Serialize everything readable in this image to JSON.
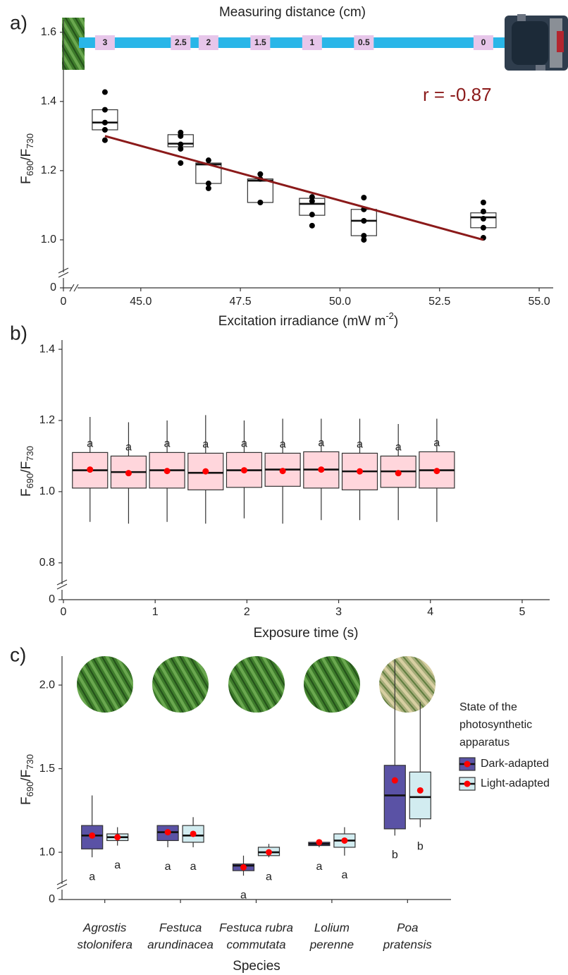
{
  "chart_data": [
    {
      "type": "box",
      "panel_label": "a)",
      "annotation_title": "Measuring distance (cm)",
      "distances": [
        3,
        2.5,
        2,
        1.5,
        1,
        0.5,
        0
      ],
      "annotation": "r = -0.87",
      "ylabel": [
        "F",
        "690",
        "/F",
        "730"
      ],
      "xlabel": [
        "Excitation irradiance (mW m",
        "-2",
        ")"
      ],
      "x": [
        44.1,
        46.0,
        46.7,
        48.0,
        49.3,
        50.6,
        53.6
      ],
      "boxes": [
        {
          "q1": 1.318,
          "median": 1.339,
          "q3": 1.376
        },
        {
          "q1": 1.269,
          "median": 1.278,
          "q3": 1.304
        },
        {
          "q1": 1.163,
          "median": 1.218,
          "q3": 1.222
        },
        {
          "q1": 1.108,
          "median": 1.171,
          "q3": 1.176
        },
        {
          "q1": 1.071,
          "median": 1.104,
          "q3": 1.12
        },
        {
          "q1": 1.012,
          "median": 1.055,
          "q3": 1.088
        },
        {
          "q1": 1.035,
          "median": 1.065,
          "q3": 1.078
        }
      ],
      "points": [
        [
          1.427,
          1.376,
          1.339,
          1.318,
          1.288
        ],
        [
          1.31,
          1.3,
          1.276,
          1.263,
          1.222
        ],
        [
          1.23,
          1.163,
          1.149
        ],
        [
          1.19,
          1.176,
          1.108
        ],
        [
          1.124,
          1.112,
          1.073,
          1.041
        ],
        [
          1.122,
          1.088,
          1.055,
          1.012,
          1.0
        ],
        [
          1.108,
          1.082,
          1.061,
          1.035,
          1.006
        ]
      ],
      "trend": {
        "x": [
          44.1,
          53.6
        ],
        "y": [
          1.3,
          1.0
        ],
        "color": "#8b1a1a"
      },
      "box_color": "#ffffff",
      "point_color": "#000000",
      "xlim": [
        43.5,
        55.3
      ],
      "xticks": [
        0,
        {
          "value": 45,
          "label": "45.0"
        },
        47.5,
        {
          "value": 50,
          "label": "50.0"
        },
        52.5,
        {
          "value": 55,
          "label": "55.0"
        }
      ],
      "ylim": [
        0.9,
        1.63
      ],
      "yticks": [
        0,
        {
          "value": 1,
          "label": "1.0"
        },
        1.2,
        1.4,
        1.6
      ],
      "xbreak": true,
      "ybreak": true
    },
    {
      "type": "box",
      "panel_label": "b)",
      "ylabel": [
        "F",
        "690",
        "/F",
        "730"
      ],
      "xlabel": [
        "Exposure time (s)"
      ],
      "x": [
        0.29,
        0.71,
        1.13,
        1.55,
        1.97,
        2.39,
        2.81,
        3.23,
        3.65,
        4.07
      ],
      "boxes": [
        {
          "whislo": 0.915,
          "q1": 1.01,
          "median": 1.06,
          "q3": 1.11,
          "whishi": 1.21,
          "mean": 1.062
        },
        {
          "whislo": 0.91,
          "q1": 1.01,
          "median": 1.055,
          "q3": 1.1,
          "whishi": 1.195,
          "mean": 1.052
        },
        {
          "whislo": 0.915,
          "q1": 1.01,
          "median": 1.06,
          "q3": 1.11,
          "whishi": 1.2,
          "mean": 1.058
        },
        {
          "whislo": 0.91,
          "q1": 1.005,
          "median": 1.053,
          "q3": 1.108,
          "whishi": 1.215,
          "mean": 1.057
        },
        {
          "whislo": 0.925,
          "q1": 1.012,
          "median": 1.06,
          "q3": 1.11,
          "whishi": 1.2,
          "mean": 1.06
        },
        {
          "whislo": 0.91,
          "q1": 1.015,
          "median": 1.062,
          "q3": 1.108,
          "whishi": 1.205,
          "mean": 1.058
        },
        {
          "whislo": 0.92,
          "q1": 1.01,
          "median": 1.062,
          "q3": 1.112,
          "whishi": 1.205,
          "mean": 1.062
        },
        {
          "whislo": 0.92,
          "q1": 1.005,
          "median": 1.057,
          "q3": 1.108,
          "whishi": 1.205,
          "mean": 1.057
        },
        {
          "whislo": 0.92,
          "q1": 1.012,
          "median": 1.057,
          "q3": 1.1,
          "whishi": 1.19,
          "mean": 1.052
        },
        {
          "whislo": 0.915,
          "q1": 1.01,
          "median": 1.06,
          "q3": 1.112,
          "whishi": 1.205,
          "mean": 1.058
        }
      ],
      "letters": [
        "a",
        "a",
        "a",
        "a",
        "a",
        "a",
        "a",
        "a",
        "a",
        "a"
      ],
      "box_color": "#ffd6dc",
      "mean_color": "#ff0000",
      "xlim": [
        0,
        5.3
      ],
      "xticks": [
        0,
        1,
        2,
        3,
        4,
        5
      ],
      "ylim": [
        0.75,
        1.42
      ],
      "yticks": [
        0,
        {
          "value": 0.8,
          "label": "0.8"
        },
        {
          "value": 1,
          "label": "1.0"
        },
        1.2,
        1.4
      ],
      "ybreak": true
    },
    {
      "type": "box",
      "panel_label": "c)",
      "ylabel": [
        "F",
        "690",
        "/F",
        "730"
      ],
      "xlabel": [
        "Species"
      ],
      "categories": [
        [
          "Agrostis",
          "stolonifera"
        ],
        [
          "Festuca",
          "arundinacea"
        ],
        [
          "Festuca rubra",
          "commutata"
        ],
        [
          "Lolium",
          "perenne"
        ],
        [
          "Poa",
          "pratensis"
        ]
      ],
      "legend_title": [
        "State of the",
        "photosynthetic",
        "apparatus"
      ],
      "series": [
        {
          "name": "Dark-adapted",
          "color": "#5a52a5",
          "boxes": [
            {
              "whislo": 0.97,
              "q1": 1.02,
              "median": 1.1,
              "q3": 1.16,
              "whishi": 1.34,
              "mean": 1.1
            },
            {
              "whislo": 1.03,
              "q1": 1.07,
              "median": 1.12,
              "q3": 1.16,
              "whishi": 1.16,
              "mean": 1.12
            },
            {
              "whislo": 0.86,
              "q1": 0.89,
              "median": 0.92,
              "q3": 0.93,
              "whishi": 0.98,
              "mean": 0.91
            },
            {
              "whislo": 1.03,
              "q1": 1.04,
              "median": 1.05,
              "q3": 1.06,
              "whishi": 1.06,
              "mean": 1.06
            },
            {
              "whislo": 1.1,
              "q1": 1.14,
              "median": 1.34,
              "q3": 1.52,
              "whishi": 2.15,
              "mean": 1.43
            }
          ],
          "letters": [
            "a",
            "a",
            "a",
            "a",
            "b"
          ]
        },
        {
          "name": "Light-adapted",
          "color": "#d2ecf0",
          "boxes": [
            {
              "whislo": 1.04,
              "q1": 1.07,
              "median": 1.09,
              "q3": 1.11,
              "whishi": 1.15,
              "mean": 1.09
            },
            {
              "whislo": 1.03,
              "q1": 1.06,
              "median": 1.1,
              "q3": 1.16,
              "whishi": 1.21,
              "mean": 1.11
            },
            {
              "whislo": 0.97,
              "q1": 0.98,
              "median": 1.0,
              "q3": 1.03,
              "whishi": 1.05,
              "mean": 1.0
            },
            {
              "whislo": 0.98,
              "q1": 1.03,
              "median": 1.07,
              "q3": 1.11,
              "whishi": 1.15,
              "mean": 1.07
            },
            {
              "whislo": 1.15,
              "q1": 1.2,
              "median": 1.33,
              "q3": 1.48,
              "whishi": 1.9,
              "mean": 1.37
            }
          ],
          "letters": [
            "a",
            "a",
            "a",
            "a",
            "b"
          ]
        }
      ],
      "mean_color": "#ff0000",
      "ylim": [
        0.85,
        2.15
      ],
      "yticks": [
        0,
        {
          "value": 1,
          "label": "1.0"
        },
        1.5,
        {
          "value": 2,
          "label": "2.0"
        }
      ],
      "ybreak": true
    }
  ]
}
